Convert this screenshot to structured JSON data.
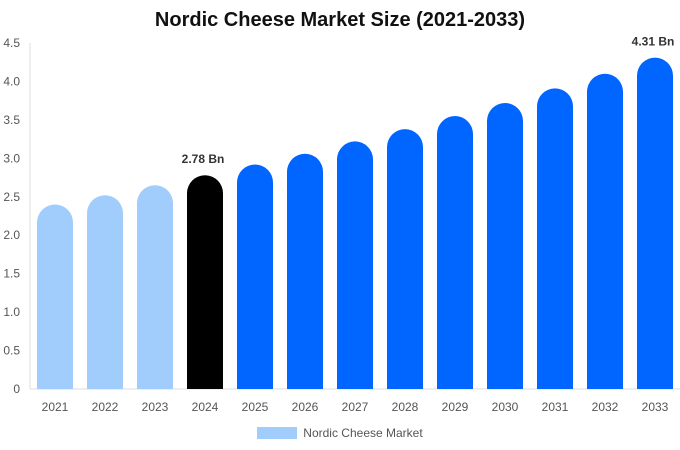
{
  "chart_data": {
    "type": "bar",
    "title": "Nordic Cheese Market Size (2021-2033)",
    "categories": [
      "2021",
      "2022",
      "2023",
      "2024",
      "2025",
      "2026",
      "2027",
      "2028",
      "2029",
      "2030",
      "2031",
      "2032",
      "2033"
    ],
    "series": [
      {
        "name": "Nordic Cheese Market",
        "values": [
          2.4,
          2.52,
          2.65,
          2.78,
          2.92,
          3.06,
          3.22,
          3.38,
          3.55,
          3.72,
          3.91,
          4.1,
          4.31
        ]
      }
    ],
    "data_labels": {
      "3": "2.78 Bn",
      "12": "4.31 Bn"
    },
    "ylim": [
      0,
      4.5
    ],
    "yticks": [
      "0",
      "0.5",
      "1.0",
      "1.5",
      "2.0",
      "2.5",
      "3.0",
      "3.5",
      "4.0",
      "4.5"
    ],
    "grid": false,
    "legend": "bottom",
    "colors": {
      "historical": "#a0cdfc",
      "base_year": "#000000",
      "forecast": "#0066ff"
    }
  }
}
